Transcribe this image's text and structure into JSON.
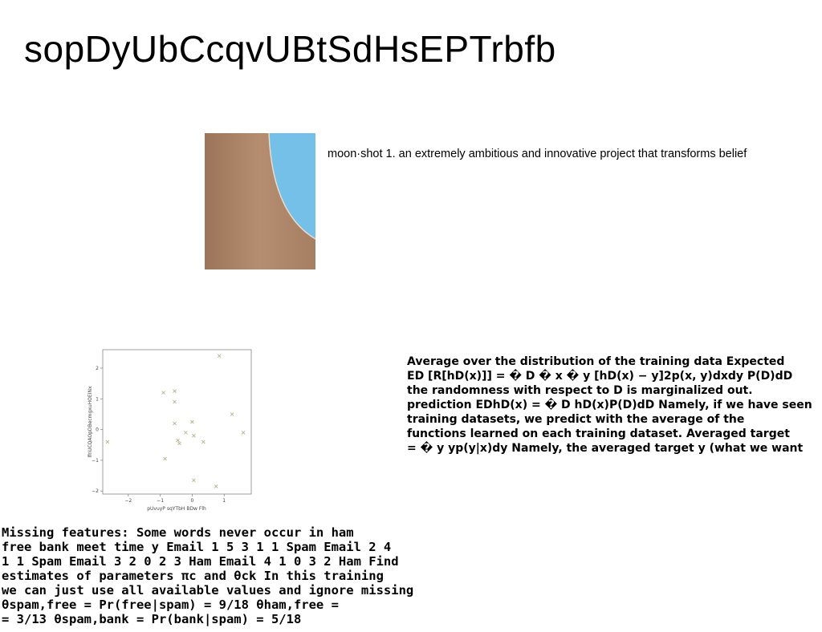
{
  "title": "sopDyUbCcqvUBtSdHsEPTrbfb",
  "caption": "moon·shot 1. an extremely ambitious and innovative project that transforms belief",
  "colors": {
    "sky": "#74c0e8",
    "wall": "#b58d70",
    "marker": "#b8b08a"
  },
  "paragraph_right": [
    "Average over the distribution of the training data Expected",
    "ED [R[hD(x)]] = � D � x � y [hD(x) − y]2p(x, y)dxdy P(D)dD",
    "the randomness with respect to D is marginalized out.",
    "prediction EDhD(x) = � D hD(x)P(D)dD Namely, if we have seen",
    "training datasets, we predict with the average of the",
    "functions learned on each training dataset. Averaged target",
    "= � y yp(y|x)dy Namely, the averaged target y (what we want"
  ],
  "paragraph_left": [
    "Missing features: Some words never occur in ham",
    "free bank meet time y Email 1 5 3 1 1 Spam Email 2 4",
    "1 1 Spam Email 3 2 0 2 3 Ham Email 4 1 0 3 2 Ham Find",
    "estimates of parameters πc and θck In this training",
    "we can just use all available values and ignore missing",
    "θspam,free = Pr(free|spam) = 9/18 θham,free =",
    "= 3/13 θspam,bank = Pr(bank|spam) = 5/18"
  ],
  "chart_data": {
    "type": "scatter",
    "xlabel": "pUvuyP sqYTbH BDw Flh",
    "ylabel": "lfnUCQAOpDBecmgxuHOEINx",
    "xlim": [
      -2.8,
      1.85
    ],
    "ylim": [
      -2.1,
      2.6
    ],
    "xticks": [
      "−2",
      "−1",
      "0",
      "1"
    ],
    "xtick_values": [
      -2,
      -1,
      0,
      1
    ],
    "yticks": [
      "−2",
      "−1",
      "0",
      "1",
      "2"
    ],
    "ytick_values": [
      -2,
      -1,
      0,
      1,
      2
    ],
    "marker": "x",
    "points": [
      {
        "x": 0.85,
        "y": 2.4
      },
      {
        "x": -0.55,
        "y": 1.25
      },
      {
        "x": -0.9,
        "y": 1.2
      },
      {
        "x": -0.55,
        "y": 0.9
      },
      {
        "x": 1.25,
        "y": 0.5
      },
      {
        "x": -0.55,
        "y": 0.2
      },
      {
        "x": 0.0,
        "y": 0.25
      },
      {
        "x": -0.2,
        "y": -0.1
      },
      {
        "x": 1.6,
        "y": -0.1
      },
      {
        "x": 0.05,
        "y": -0.2
      },
      {
        "x": -0.45,
        "y": -0.35
      },
      {
        "x": -0.4,
        "y": -0.45
      },
      {
        "x": 0.35,
        "y": -0.4
      },
      {
        "x": -2.65,
        "y": -0.4
      },
      {
        "x": -0.85,
        "y": -0.95
      },
      {
        "x": 0.05,
        "y": -1.65
      },
      {
        "x": 0.75,
        "y": -1.85
      }
    ]
  }
}
